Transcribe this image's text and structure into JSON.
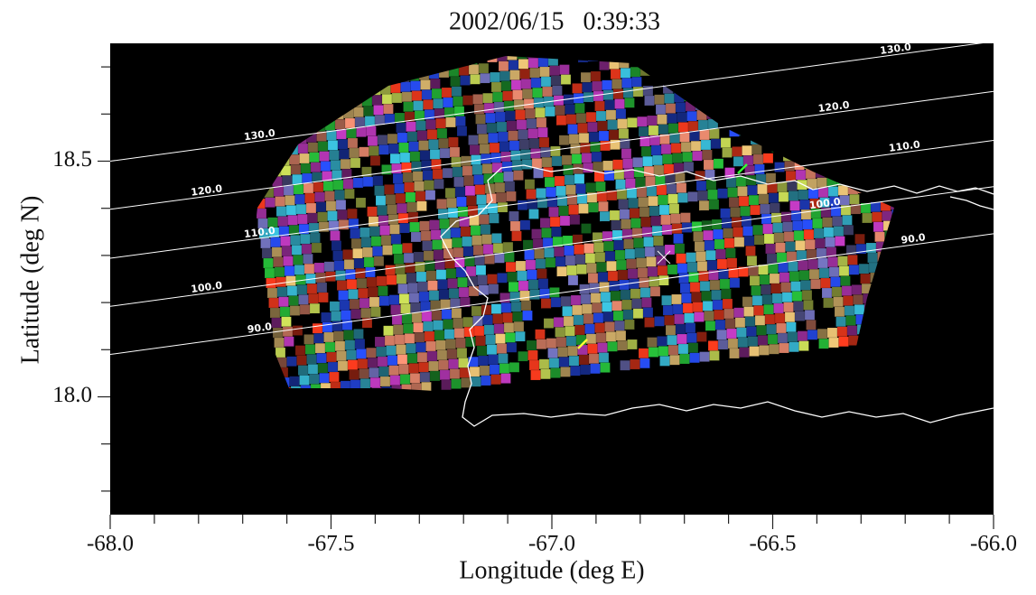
{
  "chart_data": {
    "type": "contour",
    "title": "2002/06/15   0:39:33",
    "xlabel": "Longitude (deg E)",
    "ylabel": "Latitude (deg N)",
    "xlim": [
      -68,
      -66
    ],
    "ylim": [
      17.75,
      18.75
    ],
    "xticks": [
      {
        "value": -68,
        "label": "-68.0"
      },
      {
        "value": -67.5,
        "label": "-67.5"
      },
      {
        "value": -67,
        "label": "-67.0"
      },
      {
        "value": -66.5,
        "label": "-66.5"
      },
      {
        "value": -66,
        "label": "-66.0"
      }
    ],
    "yticks": [
      {
        "value": 18,
        "label": "18.0"
      },
      {
        "value": 18.5,
        "label": "18.5"
      }
    ],
    "xminorticks": [
      -67.9,
      -67.8,
      -67.7,
      -67.6,
      -67.4,
      -67.3,
      -67.2,
      -67.1,
      -66.9,
      -66.8,
      -66.7,
      -66.6,
      -66.4,
      -66.3,
      -66.2,
      -66.1
    ],
    "yminorticks": [
      17.8,
      17.9,
      18.1,
      18.2,
      18.3,
      18.4,
      18.6,
      18.7
    ],
    "contours": [
      {
        "value": 130,
        "label": "130.0",
        "lon": [
          -68,
          -66
        ],
        "lat": [
          18.5,
          18.754
        ]
      },
      {
        "value": 120,
        "label": "120.0",
        "lon": [
          -68,
          -66
        ],
        "lat": [
          18.398,
          18.648
        ]
      },
      {
        "value": 110,
        "label": "110.0",
        "lon": [
          -68,
          -66
        ],
        "lat": [
          18.294,
          18.544
        ]
      },
      {
        "value": 100,
        "label": "100.0",
        "lon": [
          -68,
          -66
        ],
        "lat": [
          18.192,
          18.446
        ]
      },
      {
        "value": 90,
        "label": "90.0",
        "lon": [
          -68,
          -66
        ],
        "lat": [
          18.09,
          18.346
        ]
      }
    ]
  }
}
